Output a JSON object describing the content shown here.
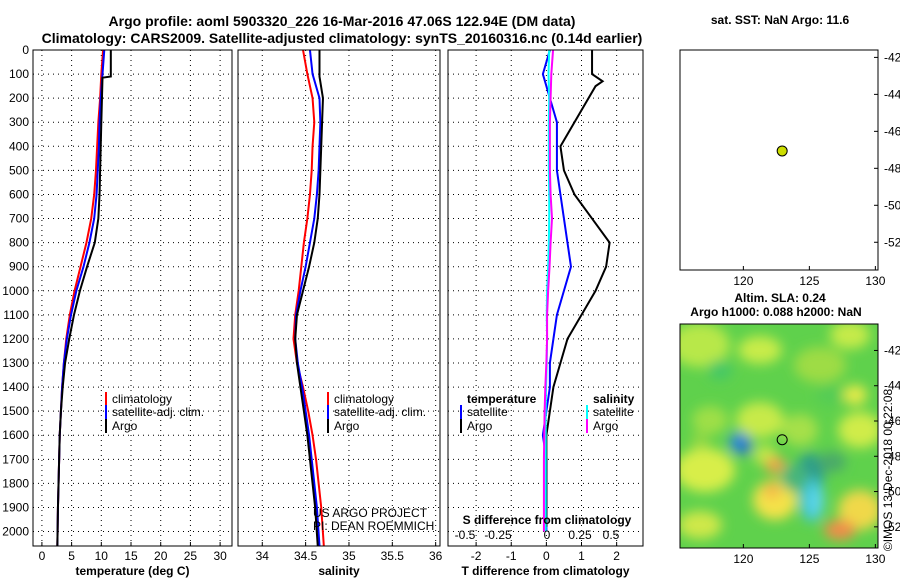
{
  "title": {
    "line1": "Argo profile: aoml 5903320_226 16-Mar-2016 47.06S 122.94E (DM data)",
    "line2": "Climatology: CARS2009. Satellite-adjusted climatology: synTS_20160316.nc (0.14d earlier)"
  },
  "colors": {
    "climatology": "#ff0000",
    "satellite": "#0000ff",
    "argo": "#000000",
    "sat_salinity": "#00ffff",
    "argo_salinity": "#ff00ff"
  },
  "legend": {
    "climatology": "climatology",
    "satellite_adj": "satellite-adj. clim.",
    "argo": "Argo",
    "temperature": "temperature",
    "salinity": "salinity",
    "satellite": "satellite"
  },
  "credits": {
    "line1": "US ARGO PROJECT",
    "line2": "PI: DEAN ROEMMICH"
  },
  "sst_title": "sat. SST: NaN Argo: 11.6",
  "sla_title1": "Altim. SLA: 0.24",
  "sla_title2": "Argo h1000: 0.088 h2000: NaN",
  "watermark": "©IMOS 13-Dec-2018 00:22:08",
  "chart_data": [
    {
      "type": "line",
      "xlabel": "temperature (deg C)",
      "xticks": [
        "0",
        "5",
        "10",
        "15",
        "20",
        "25",
        "30"
      ],
      "yticks": [
        "0",
        "100",
        "200",
        "300",
        "400",
        "500",
        "600",
        "700",
        "800",
        "900",
        "1000",
        "1100",
        "1200",
        "1300",
        "1400",
        "1500",
        "1600",
        "1700",
        "1800",
        "1900",
        "2000"
      ],
      "xlim": [
        -1.5,
        32
      ],
      "ylim": [
        0,
        2060
      ],
      "series": [
        {
          "name": "climatology",
          "color": "#ff0000",
          "x": [
            10.3,
            10.0,
            9.8,
            9.5,
            9.3,
            9.1,
            8.8,
            8.3,
            7.5,
            6.5,
            5.5,
            4.7,
            4.1,
            3.7,
            3.4,
            3.2,
            3.0,
            2.9,
            2.8,
            2.7,
            2.6
          ],
          "y": [
            0,
            100,
            200,
            300,
            400,
            500,
            600,
            700,
            800,
            900,
            1000,
            1100,
            1200,
            1300,
            1400,
            1500,
            1600,
            1700,
            1800,
            1900,
            2060
          ]
        },
        {
          "name": "satellite-adj. clim.",
          "color": "#0000ff",
          "x": [
            10.5,
            10.2,
            9.9,
            9.7,
            9.6,
            9.4,
            9.2,
            8.8,
            8.0,
            7.0,
            5.8,
            4.9,
            4.2,
            3.7,
            3.4,
            3.2,
            3.0,
            2.9,
            2.8,
            2.7,
            2.6
          ],
          "y": [
            0,
            100,
            200,
            300,
            400,
            500,
            600,
            700,
            800,
            900,
            1000,
            1100,
            1200,
            1300,
            1400,
            1500,
            1600,
            1700,
            1800,
            1900,
            2060
          ]
        },
        {
          "name": "Argo",
          "color": "#000000",
          "x": [
            11.6,
            11.6,
            10.2,
            10.0,
            9.9,
            9.8,
            9.7,
            9.5,
            8.9,
            7.6,
            6.4,
            5.4,
            4.6,
            3.9,
            3.5,
            3.2,
            3.0,
            2.9,
            2.8,
            2.7,
            2.6
          ],
          "y": [
            0,
            110,
            115,
            300,
            400,
            500,
            600,
            700,
            800,
            900,
            1000,
            1100,
            1200,
            1300,
            1400,
            1500,
            1600,
            1700,
            1800,
            1900,
            2060
          ]
        }
      ]
    },
    {
      "type": "line",
      "xlabel": "salinity",
      "xticks": [
        "34",
        "34.5",
        "35",
        "35.5",
        "36"
      ],
      "xlim": [
        33.72,
        36.05
      ],
      "ylim": [
        0,
        2060
      ],
      "series": [
        {
          "name": "climatology",
          "color": "#ff0000",
          "x": [
            34.47,
            34.52,
            34.58,
            34.6,
            34.58,
            34.57,
            34.55,
            34.52,
            34.48,
            34.45,
            34.42,
            34.38,
            34.36,
            34.4,
            34.47,
            34.53,
            34.58,
            34.62,
            34.65,
            34.68,
            34.71
          ],
          "y": [
            0,
            100,
            200,
            300,
            400,
            500,
            600,
            700,
            800,
            900,
            1000,
            1100,
            1200,
            1300,
            1400,
            1500,
            1600,
            1700,
            1800,
            1900,
            2060
          ]
        },
        {
          "name": "satellite-adj. clim.",
          "color": "#0000ff",
          "x": [
            34.55,
            34.58,
            34.66,
            34.67,
            34.66,
            34.65,
            34.63,
            34.6,
            34.55,
            34.5,
            34.44,
            34.39,
            34.38,
            34.41,
            34.46,
            34.5,
            34.54,
            34.57,
            34.6,
            34.63,
            34.66
          ],
          "y": [
            0,
            100,
            200,
            300,
            400,
            500,
            600,
            700,
            800,
            900,
            1000,
            1100,
            1200,
            1300,
            1400,
            1500,
            1600,
            1700,
            1800,
            1900,
            2060
          ]
        },
        {
          "name": "Argo",
          "color": "#000000",
          "x": [
            34.66,
            34.66,
            34.7,
            34.69,
            34.68,
            34.67,
            34.66,
            34.64,
            34.6,
            34.54,
            34.47,
            34.4,
            34.38,
            34.4,
            34.44,
            34.48,
            34.52,
            34.55,
            34.58,
            34.61,
            34.64
          ],
          "y": [
            0,
            110,
            200,
            300,
            400,
            500,
            600,
            700,
            800,
            900,
            1000,
            1100,
            1200,
            1300,
            1400,
            1500,
            1600,
            1700,
            1800,
            1900,
            2060
          ]
        }
      ]
    },
    {
      "type": "line",
      "xlabel": "T difference from climatology",
      "xticks": [
        "-2",
        "-1",
        "0",
        "1",
        "2"
      ],
      "s_label": "S difference from climatology",
      "s_ticks": [
        "-0.5",
        "-0.25",
        "0",
        "0.25",
        "0.5"
      ],
      "xlim": [
        -2.8,
        2.75
      ],
      "ylim": [
        0,
        2060
      ],
      "series": [
        {
          "name": "temperature satellite",
          "color": "#0000ff",
          "x": [
            0.1,
            -0.1,
            0.1,
            0.3,
            0.3,
            0.3,
            0.4,
            0.5,
            0.6,
            0.7,
            0.5,
            0.3,
            0.2,
            0.1,
            0.1,
            0.0,
            -0.1,
            0.0,
            0.0,
            0.0,
            0.0
          ],
          "y": [
            0,
            100,
            200,
            300,
            400,
            500,
            600,
            700,
            800,
            900,
            1000,
            1100,
            1200,
            1300,
            1400,
            1500,
            1600,
            1700,
            1800,
            1900,
            2000
          ]
        },
        {
          "name": "temperature Argo",
          "color": "#000000",
          "x": [
            1.3,
            1.3,
            1.6,
            1.4,
            0.4,
            0.5,
            0.8,
            1.3,
            1.8,
            1.7,
            1.4,
            1.0,
            0.6,
            0.4,
            0.2,
            0.1,
            0.0,
            0.0,
            0.0,
            0.0,
            0.0
          ],
          "y": [
            0,
            100,
            130,
            150,
            400,
            500,
            600,
            700,
            800,
            900,
            1000,
            1100,
            1200,
            1300,
            1400,
            1500,
            1600,
            1700,
            1800,
            1900,
            1980
          ]
        },
        {
          "name": "salinity satellite",
          "color": "#00ffff",
          "x": [
            0.08,
            0.06,
            0.08,
            0.07,
            0.07,
            0.07,
            0.08,
            0.08,
            0.07,
            0.05,
            0.02,
            0.01,
            0.02,
            0.01,
            -0.01,
            -0.02,
            -0.02,
            -0.02,
            -0.02,
            -0.02,
            -0.02
          ],
          "y": [
            0,
            100,
            200,
            300,
            400,
            500,
            600,
            700,
            800,
            900,
            1000,
            1100,
            1200,
            1300,
            1400,
            1500,
            1600,
            1700,
            1800,
            1900,
            2000
          ]
        },
        {
          "name": "salinity Argo",
          "color": "#ff00ff",
          "x": [
            0.19,
            0.14,
            0.12,
            0.1,
            0.1,
            0.1,
            0.12,
            0.16,
            0.12,
            0.09,
            0.05,
            0.02,
            0.02,
            0.0,
            -0.03,
            -0.05,
            -0.06,
            -0.07,
            -0.07,
            -0.07,
            -0.07
          ],
          "y": [
            0,
            100,
            200,
            300,
            400,
            500,
            600,
            700,
            800,
            900,
            1000,
            1100,
            1200,
            1300,
            1400,
            1500,
            1600,
            1700,
            1800,
            1900,
            2000
          ]
        }
      ]
    },
    {
      "type": "scatter",
      "title": "sat. SST: NaN Argo: 11.6",
      "xticks": [
        "120",
        "125",
        "130"
      ],
      "yticks": [
        "-42",
        "-44",
        "-46",
        "-48",
        "-50",
        "-52"
      ],
      "xlim": [
        115.2,
        130.2
      ],
      "ylim": [
        -53.5,
        -41.6
      ],
      "points": [
        {
          "x": 122.94,
          "y": -47.06
        }
      ]
    },
    {
      "type": "heatmap",
      "title": "Altim. SLA: 0.24",
      "xticks": [
        "120",
        "125",
        "130"
      ],
      "yticks": [
        "-42",
        "-44",
        "-46",
        "-48",
        "-50",
        "-52"
      ],
      "xlim": [
        115.2,
        130.2
      ],
      "ylim": [
        -53.2,
        -40.5
      ],
      "points": [
        {
          "x": 122.94,
          "y": -47.06
        }
      ]
    }
  ]
}
